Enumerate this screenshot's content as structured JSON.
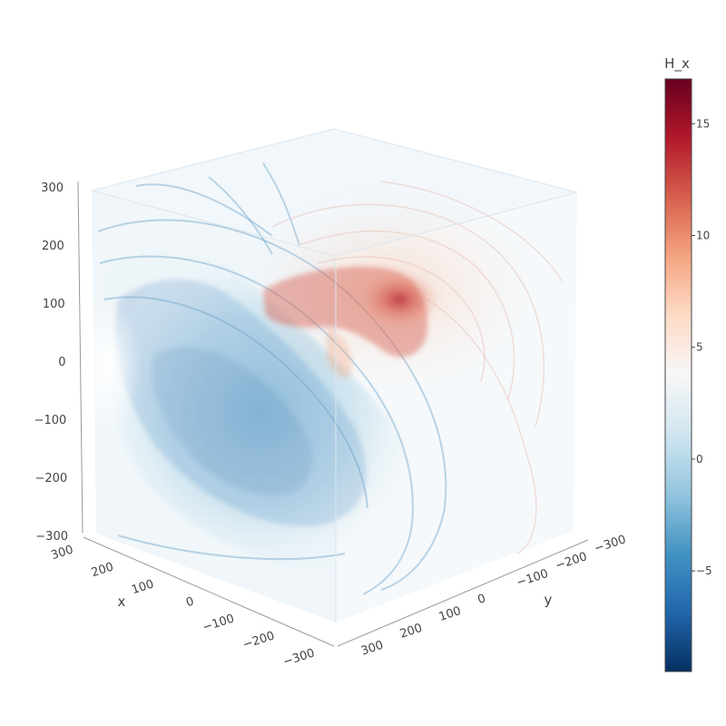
{
  "chart_data": {
    "type": "volume",
    "colorscale_name": "RdBu (reversed)",
    "colorscale": [
      "#053061",
      "#2166ac",
      "#4393c3",
      "#92c5de",
      "#d1e5f0",
      "#f7f7f7",
      "#fddbc7",
      "#f4a582",
      "#d6604d",
      "#b2182b",
      "#67001f"
    ],
    "colorbar": {
      "title": "H_x",
      "range": [
        -9.5,
        17
      ],
      "ticks": [
        -5,
        0,
        5,
        10,
        15
      ],
      "tick_labels": [
        "−5",
        "0",
        "5",
        "10",
        "15"
      ]
    },
    "axes": {
      "x": {
        "title": "x",
        "range": [
          -300,
          300
        ],
        "ticks": [
          300,
          200,
          100,
          0,
          -100,
          -200,
          -300
        ],
        "tick_labels": [
          "300",
          "200",
          "100",
          "0",
          "−100",
          "−200",
          "−300"
        ]
      },
      "y": {
        "title": "y",
        "range": [
          -300,
          300
        ],
        "ticks": [
          -300,
          -200,
          -100,
          0,
          100,
          200,
          300
        ],
        "tick_labels": [
          "−300",
          "−200",
          "−100",
          "0",
          "100",
          "200",
          "300"
        ]
      },
      "z": {
        "title": "",
        "range": [
          -300,
          300
        ],
        "ticks": [
          300,
          200,
          100,
          0,
          -100,
          -200,
          -300
        ],
        "tick_labels": [
          "300",
          "200",
          "100",
          "0",
          "−100",
          "−200",
          "−300"
        ]
      }
    },
    "regions": [
      {
        "name": "positive-lobe",
        "value_min": 3,
        "value_max": 17
      },
      {
        "name": "negative-lobe",
        "value_min": -9.5,
        "value_max": 0
      }
    ]
  }
}
